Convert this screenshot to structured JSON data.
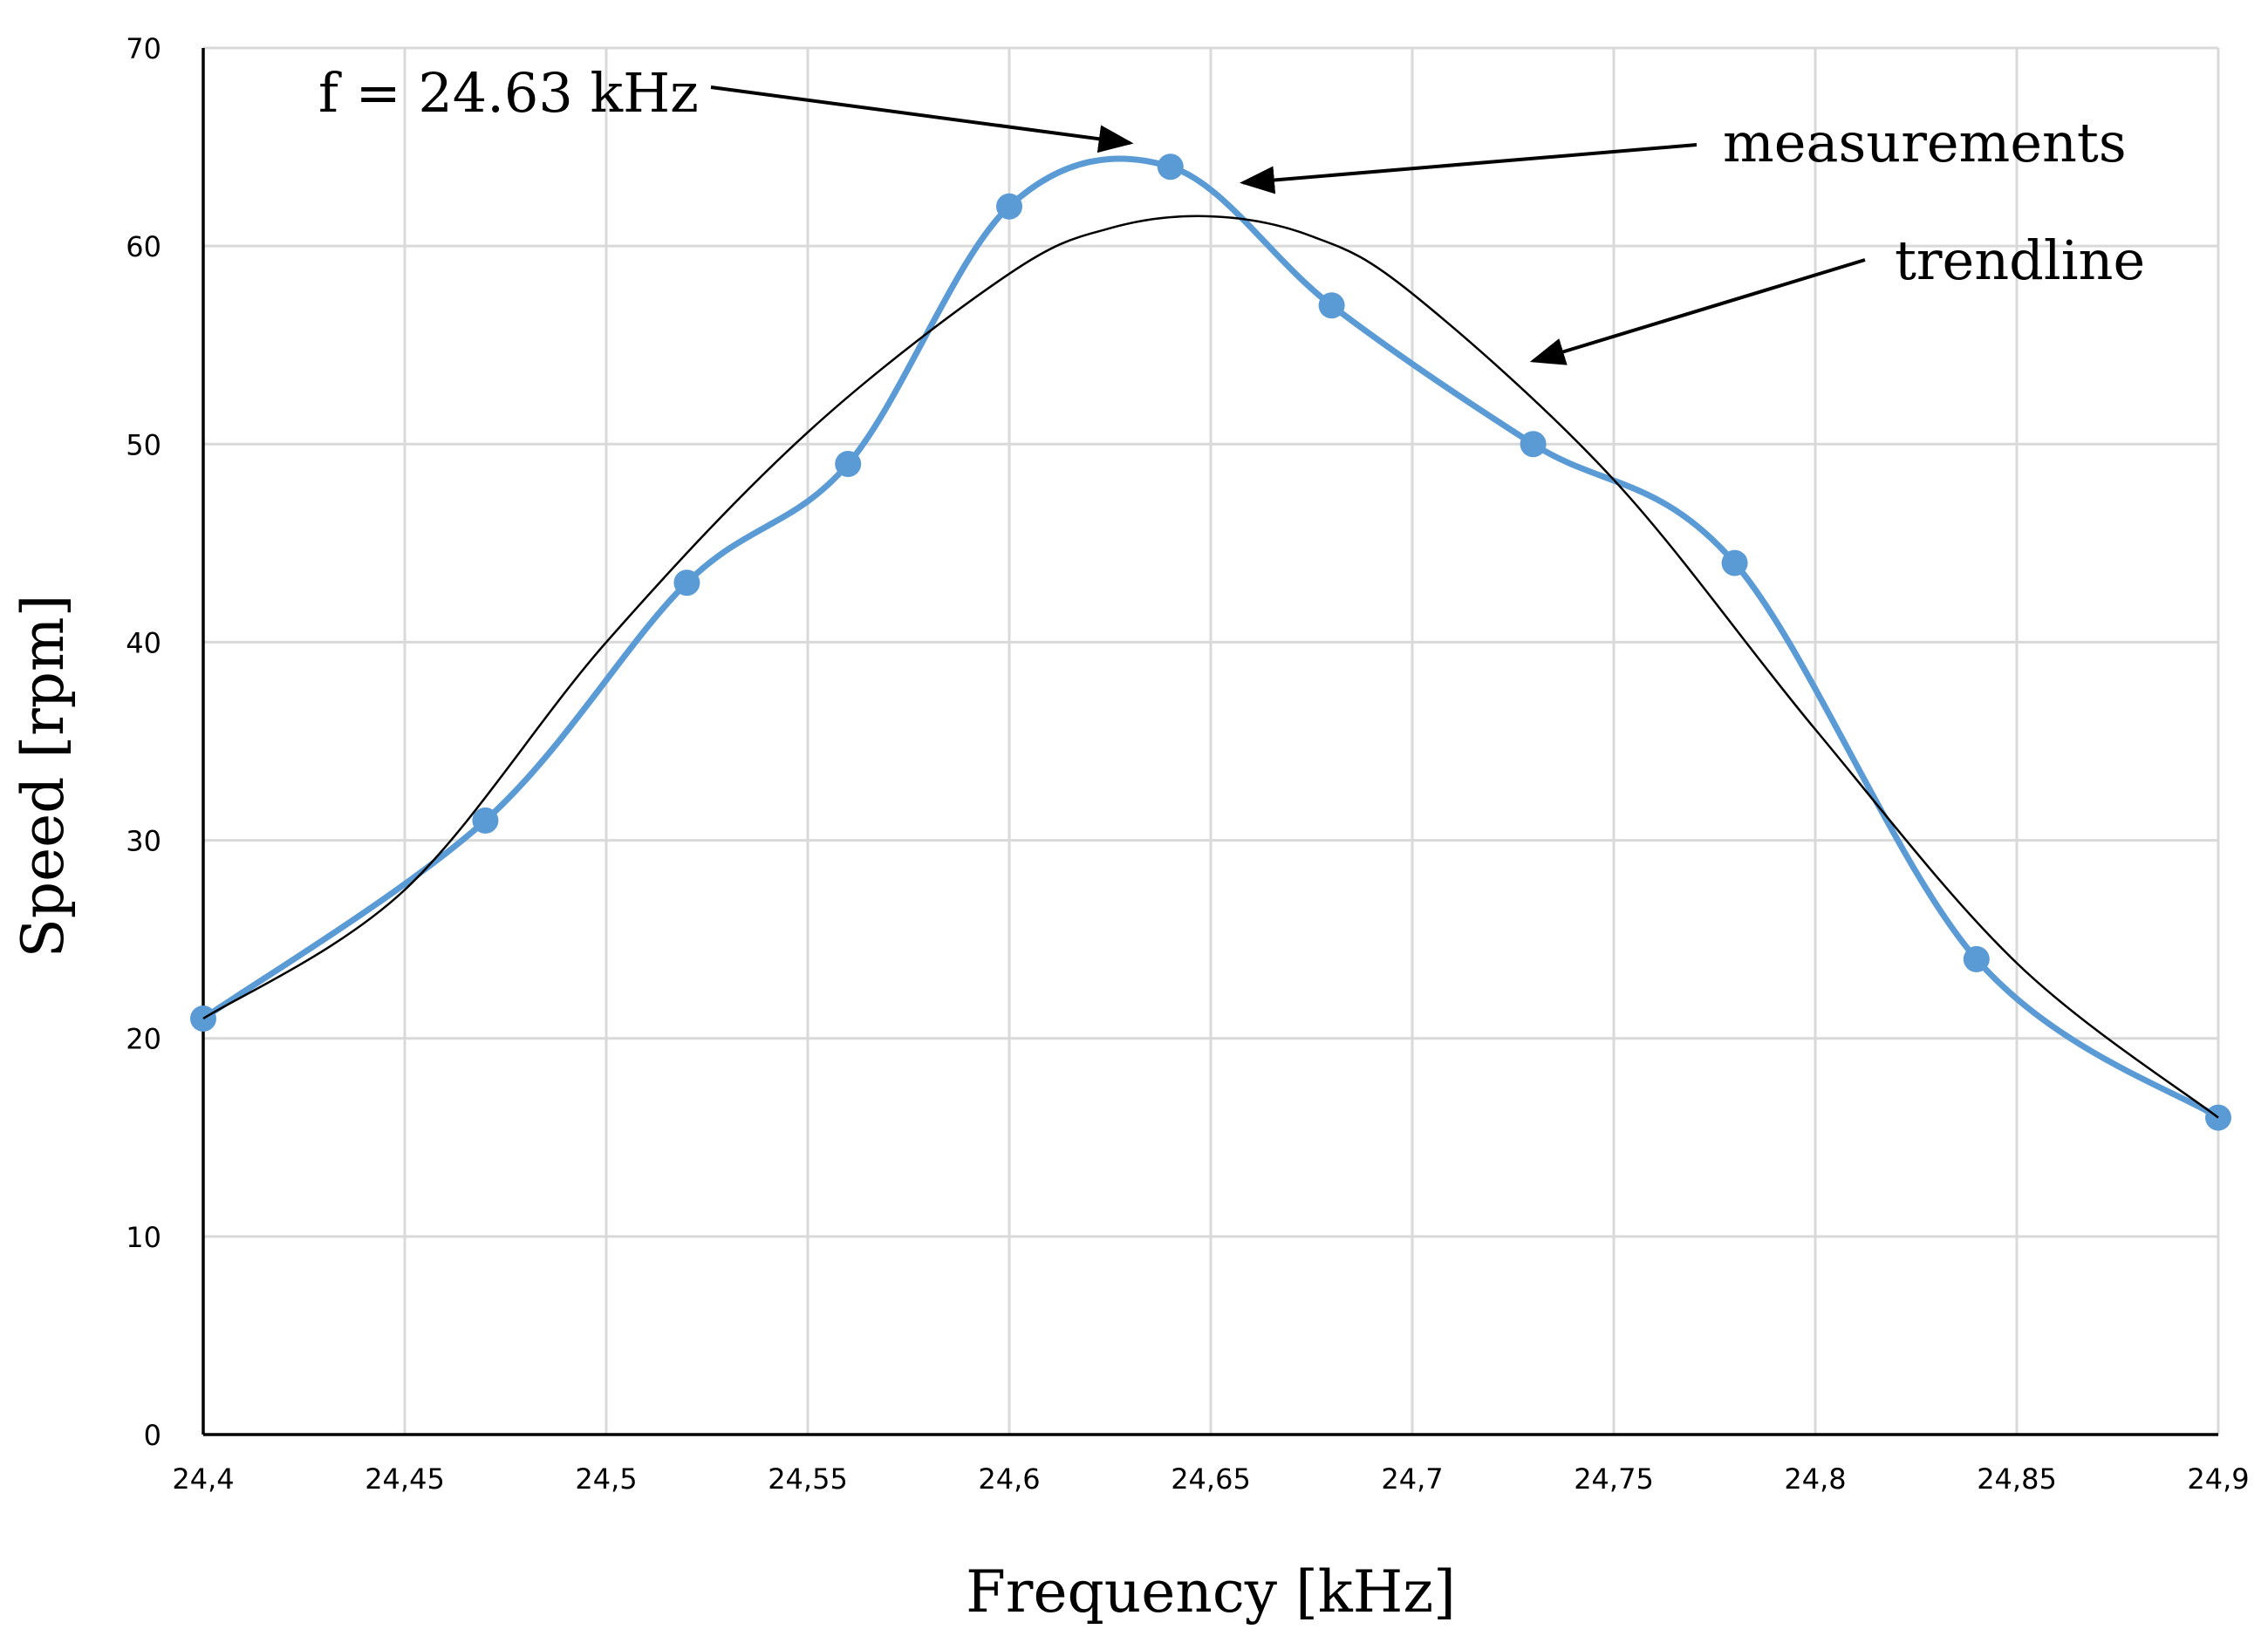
{
  "chart_data": {
    "type": "line",
    "xlabel": "Frequency [kHz]",
    "ylabel": "Speed [rpm]",
    "xlim": [
      24.4,
      24.9
    ],
    "ylim": [
      0,
      70
    ],
    "x_ticks": [
      24.4,
      24.45,
      24.5,
      24.55,
      24.6,
      24.65,
      24.7,
      24.75,
      24.8,
      24.85,
      24.9
    ],
    "x_tick_labels": [
      "24,4",
      "24,45",
      "24,5",
      "24,55",
      "24,6",
      "24,65",
      "24,7",
      "24,75",
      "24,8",
      "24,85",
      "24,9"
    ],
    "y_ticks": [
      0,
      10,
      20,
      30,
      40,
      50,
      60,
      70
    ],
    "y_tick_labels": [
      "0",
      "10",
      "20",
      "30",
      "40",
      "50",
      "60",
      "70"
    ],
    "grid": true,
    "series": [
      {
        "name": "measurements",
        "style": "smooth line with markers",
        "color": "#5b9bd5",
        "x": [
          24.4,
          24.47,
          24.52,
          24.56,
          24.6,
          24.64,
          24.68,
          24.73,
          24.78,
          24.84,
          24.9
        ],
        "y": [
          21,
          31,
          43,
          49,
          62,
          64,
          57,
          50,
          44,
          24,
          16
        ]
      },
      {
        "name": "trendline",
        "style": "thin line",
        "color": "#000000",
        "x": [
          24.4,
          24.45,
          24.5,
          24.55,
          24.6,
          24.625,
          24.65,
          24.675,
          24.7,
          24.75,
          24.8,
          24.85,
          24.9
        ],
        "y": [
          21,
          27.5,
          40,
          50.6,
          58.6,
          60.9,
          61.5,
          60.5,
          57.6,
          48.2,
          35.6,
          23.8,
          16
        ]
      }
    ],
    "annotations": [
      {
        "text": "f = 24.63 kHz",
        "arrow_to": [
          24.63,
          65.2
        ]
      },
      {
        "text": "measurements",
        "arrow_to": [
          24.658,
          63.2
        ]
      },
      {
        "text": "trendline",
        "arrow_to": [
          24.73,
          54.2
        ]
      }
    ]
  }
}
